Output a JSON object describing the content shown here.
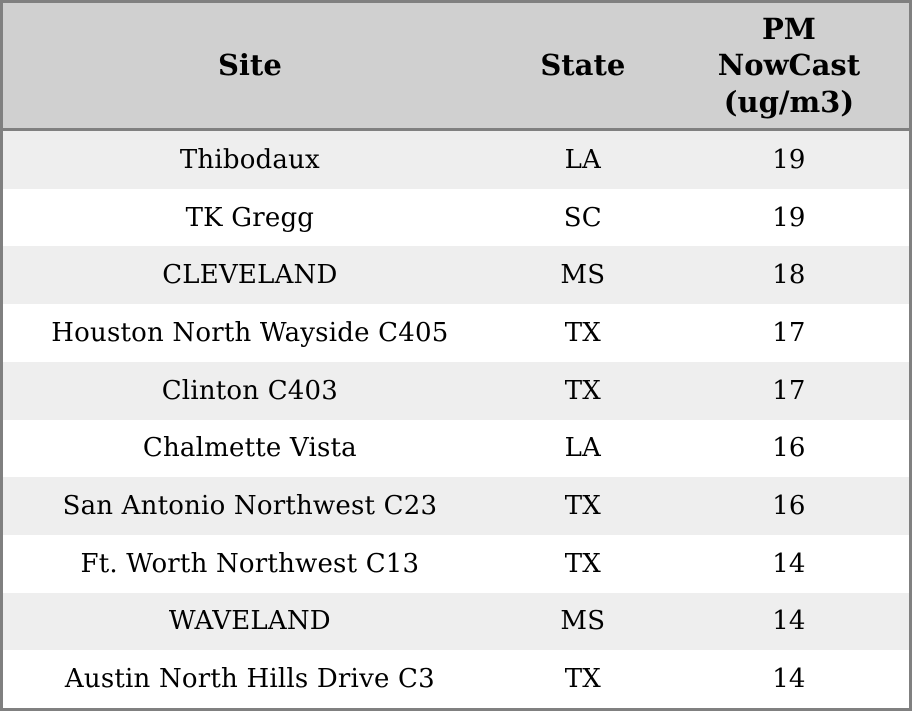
{
  "table": {
    "columns": [
      {
        "label": "Site"
      },
      {
        "label": "State"
      },
      {
        "label": "PM\nNowCast\n(ug/m3)"
      }
    ],
    "rows": [
      {
        "site": "Thibodaux",
        "state": "LA",
        "pm_nowcast": "19"
      },
      {
        "site": "TK Gregg",
        "state": "SC",
        "pm_nowcast": "19"
      },
      {
        "site": "CLEVELAND",
        "state": "MS",
        "pm_nowcast": "18"
      },
      {
        "site": "Houston North Wayside C405",
        "state": "TX",
        "pm_nowcast": "17"
      },
      {
        "site": "Clinton C403",
        "state": "TX",
        "pm_nowcast": "17"
      },
      {
        "site": "Chalmette Vista",
        "state": "LA",
        "pm_nowcast": "16"
      },
      {
        "site": "San Antonio Northwest C23",
        "state": "TX",
        "pm_nowcast": "16"
      },
      {
        "site": "Ft. Worth Northwest C13",
        "state": "TX",
        "pm_nowcast": "14"
      },
      {
        "site": "WAVELAND",
        "state": "MS",
        "pm_nowcast": "14"
      },
      {
        "site": "Austin North Hills Drive C3",
        "state": "TX",
        "pm_nowcast": "14"
      }
    ]
  },
  "colors": {
    "header_background": "#d0d0d0",
    "border": "#808080",
    "row_stripe": "#eeeeee",
    "row_plain": "#ffffff",
    "text": "#000000"
  }
}
